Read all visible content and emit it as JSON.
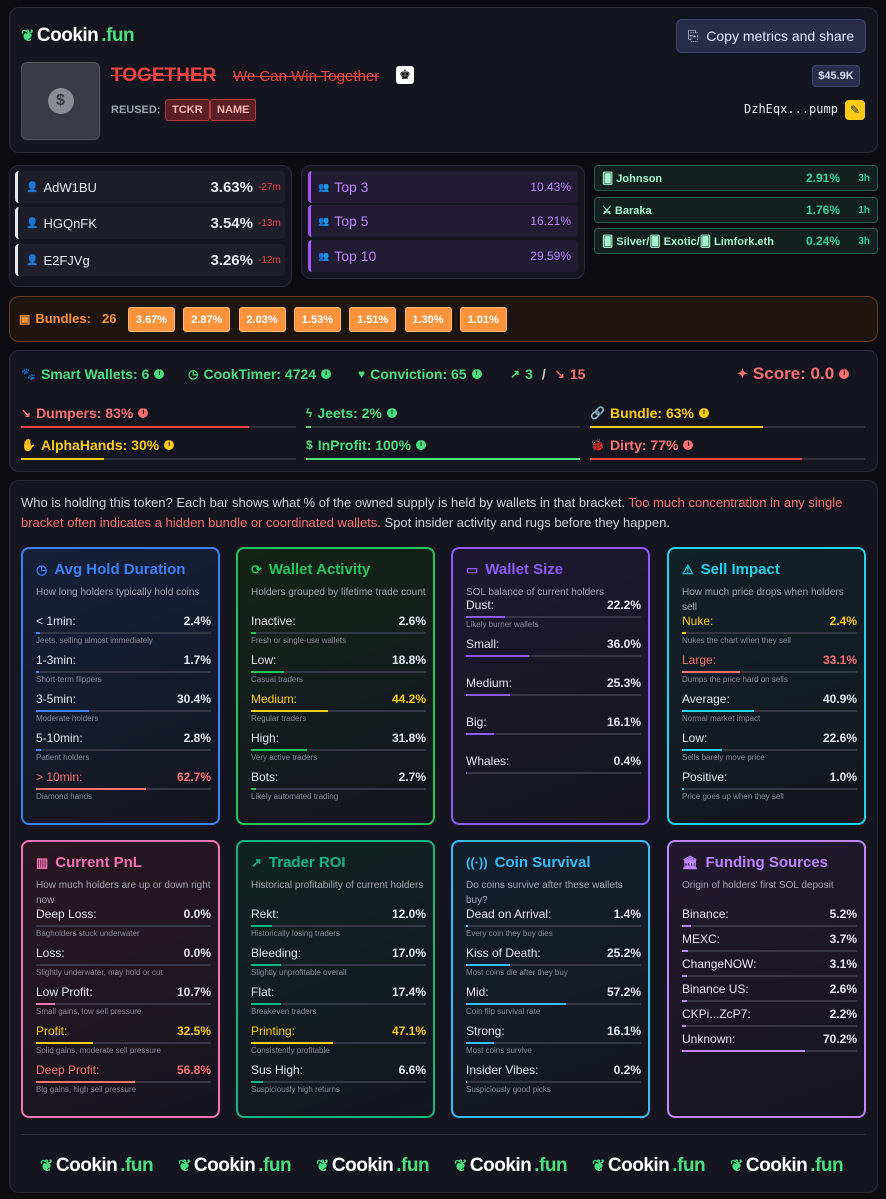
{
  "brand": {
    "name_a": "Cookin",
    "name_b": ".fun"
  },
  "header": {
    "copy_label": "Copy metrics and share",
    "token_name": "TOGETHER",
    "token_desc": "We Can Win Together",
    "reused_label": "REUSED:",
    "reused_badges": [
      "TCKR",
      "NAME"
    ],
    "market_cap": "$45.9K",
    "address": "DzhEqx...pump"
  },
  "holders": [
    {
      "wallet": "AdW1BU",
      "pct": "3.63%",
      "time": "-27m"
    },
    {
      "wallet": "HGQnFK",
      "pct": "3.54%",
      "time": "-13m"
    },
    {
      "wallet": "E2FJVg",
      "pct": "3.26%",
      "time": "-12m"
    }
  ],
  "tops": [
    {
      "label": "Top 3",
      "value": "10.43%"
    },
    {
      "label": "Top 5",
      "value": "16.21%"
    },
    {
      "label": "Top 10",
      "value": "29.59%"
    }
  ],
  "kols": [
    {
      "name": "🂠 Johnson",
      "pct": "2.91%",
      "time": "3h"
    },
    {
      "name": "⚔ Baraka",
      "pct": "1.76%",
      "time": "1h"
    },
    {
      "name": "🂠 Silver/🂠 Exotic/🂠 Limfork.eth",
      "pct": "0.24%",
      "time": "3h"
    }
  ],
  "bundles": {
    "label": "Bundles:",
    "count": "26",
    "chips": [
      "3.67%",
      "2.87%",
      "2.03%",
      "1.53%",
      "1.51%",
      "1.30%",
      "1.01%"
    ]
  },
  "metrics": {
    "smart": "Smart Wallets: 6",
    "cooktimer": "CookTimer: 4724",
    "conviction": "Conviction: 65",
    "up": "3",
    "sep": "/",
    "down": "15",
    "score": "Score: 0.0",
    "dumpers": "Dumpers: 83%",
    "jeets": "Jeets: 2%",
    "bundle": "Bundle: 63%",
    "alpha": "AlphaHands: 30%",
    "inprofit": "InProfit: 100%",
    "dirty": "Dirty: 77%",
    "dumpers_pct": 83,
    "jeets_pct": 2,
    "bundle_pct": 63,
    "alpha_pct": 30,
    "inprofit_pct": 100,
    "dirty_pct": 77
  },
  "intro": {
    "a": "Who is holding this token? Each bar shows what % of the owned supply is held by wallets in that bracket. ",
    "b": "Too much concentration in any single bracket often indicates a hidden bundle or coordinated wallets.",
    "c": " Spot insider activity and rugs before they happen."
  },
  "cards": [
    {
      "title": "Avg Hold Duration",
      "desc": "How long holders typically hold coins",
      "color": "#3b82f6",
      "rows": [
        {
          "k": "< 1min:",
          "v": "2.4%",
          "n": 2.4,
          "s": "Jeets, selling almost immediately"
        },
        {
          "k": "1-3min:",
          "v": "1.7%",
          "n": 1.7,
          "s": "Short-term flippers"
        },
        {
          "k": "3-5min:",
          "v": "30.4%",
          "n": 30.4,
          "s": "Moderate holders"
        },
        {
          "k": "5-10min:",
          "v": "2.8%",
          "n": 2.8,
          "s": "Patient holders"
        },
        {
          "k": "> 10min:",
          "v": "62.7%",
          "n": 62.7,
          "s": "Diamond hands",
          "hl": "#f87171"
        }
      ]
    },
    {
      "title": "Wallet Activity",
      "desc": "Holders grouped by lifetime trade count",
      "color": "#22c55e",
      "rows": [
        {
          "k": "Inactive:",
          "v": "2.6%",
          "n": 2.6,
          "s": "Fresh or single-use wallets"
        },
        {
          "k": "Low:",
          "v": "18.8%",
          "n": 18.8,
          "s": "Casual traders"
        },
        {
          "k": "Medium:",
          "v": "44.2%",
          "n": 44.2,
          "s": "Regular traders",
          "hl": "#facc15"
        },
        {
          "k": "High:",
          "v": "31.8%",
          "n": 31.8,
          "s": "Very active traders"
        },
        {
          "k": "Bots:",
          "v": "2.7%",
          "n": 2.7,
          "s": "Likely automated trading"
        }
      ]
    },
    {
      "title": "Wallet Size",
      "desc": "SOL balance of current holders",
      "color": "#8b5cf6",
      "rows": [
        {
          "k": "Dust:",
          "v": "22.2%",
          "n": 22.2,
          "s": "Likely burner wallets"
        },
        {
          "k": "Small:",
          "v": "36.0%",
          "n": 36.0,
          "s": ""
        },
        {
          "k": "Medium:",
          "v": "25.3%",
          "n": 25.3,
          "s": ""
        },
        {
          "k": "Big:",
          "v": "16.1%",
          "n": 16.1,
          "s": ""
        },
        {
          "k": "Whales:",
          "v": "0.4%",
          "n": 0.4,
          "s": ""
        }
      ]
    },
    {
      "title": "Sell Impact",
      "desc": "How much price drops when holders sell",
      "color": "#22d3ee",
      "rows": [
        {
          "k": "Nuke:",
          "v": "2.4%",
          "n": 2.4,
          "s": "Nukes the chart when they sell",
          "hl": "#facc15"
        },
        {
          "k": "Large:",
          "v": "33.1%",
          "n": 33.1,
          "s": "Dumps the price hard on sells",
          "hl": "#f87171"
        },
        {
          "k": "Average:",
          "v": "40.9%",
          "n": 40.9,
          "s": "Normal market impact"
        },
        {
          "k": "Low:",
          "v": "22.6%",
          "n": 22.6,
          "s": "Sells barely move price"
        },
        {
          "k": "Positive:",
          "v": "1.0%",
          "n": 1.0,
          "s": "Price goes up when they sell"
        }
      ]
    },
    {
      "title": "Current PnL",
      "desc": "How much holders are up or down right now",
      "color": "#f472b6",
      "rows": [
        {
          "k": "Deep Loss:",
          "v": "0.0%",
          "n": 0,
          "s": "Bagholders stuck underwater"
        },
        {
          "k": "Loss:",
          "v": "0.0%",
          "n": 0,
          "s": "Slightly underwater, may hold or cut"
        },
        {
          "k": "Low Profit:",
          "v": "10.7%",
          "n": 10.7,
          "s": "Small gains, low sell pressure"
        },
        {
          "k": "Profit:",
          "v": "32.5%",
          "n": 32.5,
          "s": "Solid gains, moderate sell pressure",
          "hl": "#facc15"
        },
        {
          "k": "Deep Profit:",
          "v": "56.8%",
          "n": 56.8,
          "s": "Big gains, high sell pressure",
          "hl": "#f87171"
        }
      ]
    },
    {
      "title": "Trader ROI",
      "desc": "Historical profitability of current holders",
      "color": "#10b981",
      "rows": [
        {
          "k": "Rekt:",
          "v": "12.0%",
          "n": 12.0,
          "s": "Historically losing traders"
        },
        {
          "k": "Bleeding:",
          "v": "17.0%",
          "n": 17.0,
          "s": "Slightly unprofitable overall"
        },
        {
          "k": "Flat:",
          "v": "17.4%",
          "n": 17.4,
          "s": "Breakeven traders"
        },
        {
          "k": "Printing:",
          "v": "47.1%",
          "n": 47.1,
          "s": "Consistently profitable",
          "hl": "#facc15"
        },
        {
          "k": "Sus High:",
          "v": "6.6%",
          "n": 6.6,
          "s": "Suspiciously high returns"
        }
      ]
    },
    {
      "title": "Coin Survival",
      "desc": "Do coins survive after these wallets buy?",
      "color": "#38bdf8",
      "rows": [
        {
          "k": "Dead on Arrival:",
          "v": "1.4%",
          "n": 1.4,
          "s": "Every coin they buy dies"
        },
        {
          "k": "Kiss of Death:",
          "v": "25.2%",
          "n": 25.2,
          "s": "Most coins die after they buy"
        },
        {
          "k": "Mid:",
          "v": "57.2%",
          "n": 57.2,
          "s": "Coin flip survival rate"
        },
        {
          "k": "Strong:",
          "v": "16.1%",
          "n": 16.1,
          "s": "Most coins survive"
        },
        {
          "k": "Insider Vibes:",
          "v": "0.2%",
          "n": 0.2,
          "s": "Suspiciously good picks"
        }
      ]
    },
    {
      "title": "Funding Sources",
      "desc": "Origin of holders' first SOL deposit",
      "color": "#c084fc",
      "rows": [
        {
          "k": "Binance:",
          "v": "5.2%",
          "n": 5.2,
          "s": ""
        },
        {
          "k": "MEXC:",
          "v": "3.7%",
          "n": 3.7,
          "s": ""
        },
        {
          "k": "ChangeNOW:",
          "v": "3.1%",
          "n": 3.1,
          "s": ""
        },
        {
          "k": "Binance US:",
          "v": "2.6%",
          "n": 2.6,
          "s": ""
        },
        {
          "k": "CKPi...ZcP7:",
          "v": "2.2%",
          "n": 2.2,
          "s": ""
        },
        {
          "k": "Unknown:",
          "v": "70.2%",
          "n": 70.2,
          "s": ""
        }
      ]
    }
  ]
}
